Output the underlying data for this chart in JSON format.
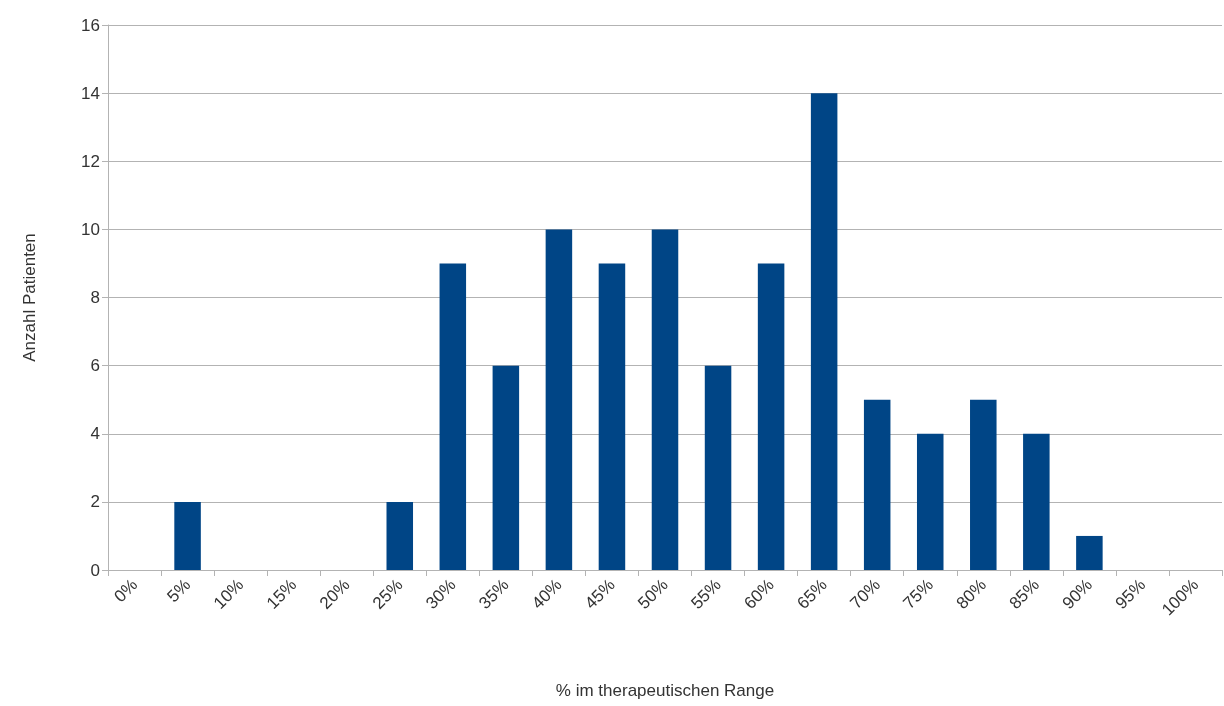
{
  "chart_data": {
    "type": "bar",
    "xlabel": "% im therapeutischen Range",
    "ylabel": "Anzahl Patienten",
    "categories": [
      "0%",
      "5%",
      "10%",
      "15%",
      "20%",
      "25%",
      "30%",
      "35%",
      "40%",
      "45%",
      "50%",
      "55%",
      "60%",
      "65%",
      "70%",
      "75%",
      "80%",
      "85%",
      "90%",
      "95%",
      "100%"
    ],
    "values": [
      0,
      2,
      0,
      0,
      0,
      2,
      9,
      6,
      10,
      9,
      10,
      6,
      9,
      14,
      5,
      4,
      5,
      4,
      1,
      0,
      0
    ],
    "color": "#004586",
    "ylim": [
      0,
      16
    ],
    "yticks": [
      0,
      2,
      4,
      6,
      8,
      10,
      12,
      14,
      16
    ],
    "grid": "y"
  }
}
